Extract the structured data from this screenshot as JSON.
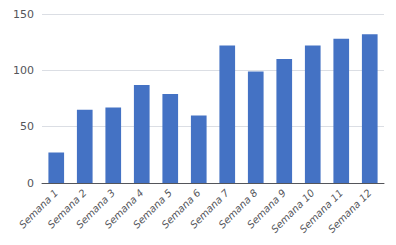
{
  "chart_data": {
    "type": "bar",
    "categories": [
      "Semana 1",
      "Semana 2",
      "Semana 3",
      "Semana 4",
      "Semana 5",
      "Semana 6",
      "Semana 7",
      "Semana 8",
      "Semana 9",
      "Semana 10",
      "Semana 11",
      "Semana 12"
    ],
    "values": [
      27,
      65,
      67,
      87,
      79,
      60,
      122,
      99,
      110,
      122,
      128,
      132
    ],
    "color": "#4472C4",
    "ylim": [
      0,
      150
    ],
    "yticks": [
      0,
      50,
      100,
      150
    ],
    "grid": true
  }
}
